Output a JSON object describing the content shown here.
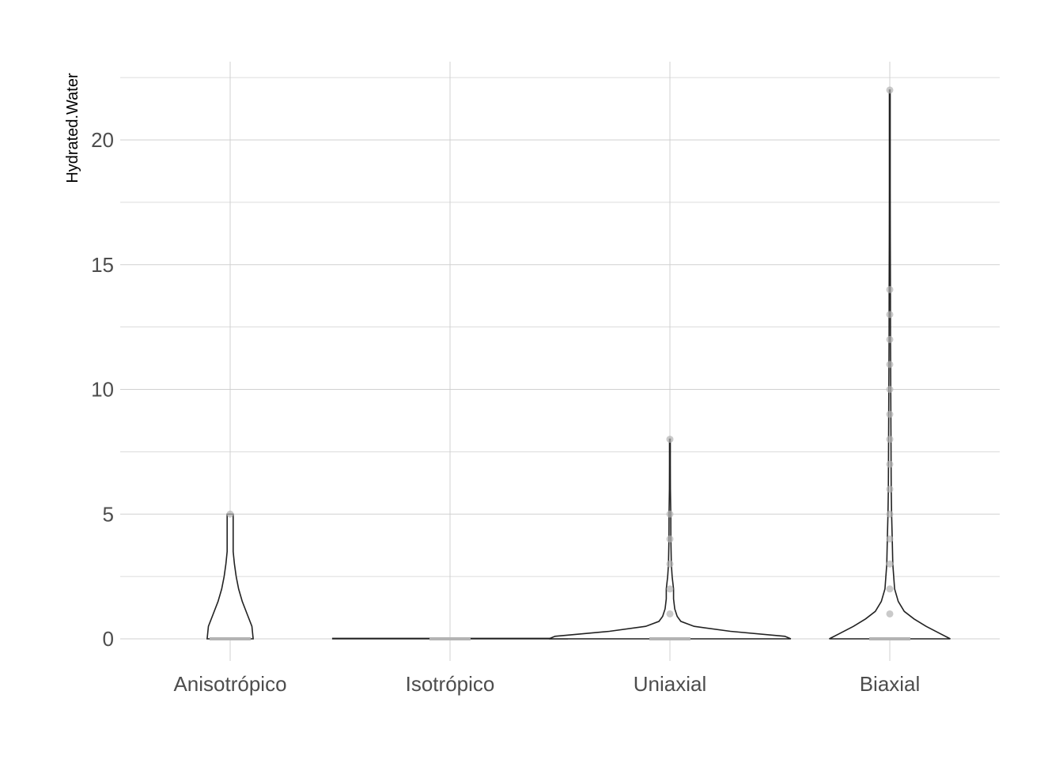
{
  "chart_data": {
    "type": "violin",
    "title": "",
    "xlabel": "",
    "ylabel": "Hydrated.Water",
    "ylim": [
      -0.9,
      23.0
    ],
    "y_ticks": [
      0,
      5,
      10,
      15,
      20
    ],
    "grid": true,
    "legend": "none",
    "colors": {
      "outline": "#222222",
      "points": "#b3b3b3",
      "grid": "#d0d0d0"
    },
    "categories": [
      "Anisotrópico",
      "Isotrópico",
      "Uniaxial",
      "Biaxial"
    ],
    "groups": [
      {
        "category": "Anisotrópico",
        "points": [
          0,
          5
        ],
        "density": [
          [
            0,
            0.19
          ],
          [
            0.5,
            0.18
          ],
          [
            1,
            0.14
          ],
          [
            1.5,
            0.1
          ],
          [
            2,
            0.07
          ],
          [
            2.5,
            0.05
          ],
          [
            3,
            0.035
          ],
          [
            3.5,
            0.025
          ],
          [
            4,
            0.025
          ],
          [
            4.5,
            0.025
          ],
          [
            5,
            0.025
          ]
        ]
      },
      {
        "category": "Isotrópico",
        "points": [
          0
        ],
        "density": [
          [
            0,
            0.97
          ],
          [
            0.02,
            0.97
          ]
        ]
      },
      {
        "category": "Uniaxial",
        "points": [
          0,
          1,
          2,
          3,
          4,
          5,
          8
        ],
        "density": [
          [
            0,
            1.0
          ],
          [
            0.1,
            0.95
          ],
          [
            0.3,
            0.5
          ],
          [
            0.5,
            0.2
          ],
          [
            0.7,
            0.09
          ],
          [
            0.9,
            0.06
          ],
          [
            1.2,
            0.04
          ],
          [
            1.6,
            0.03
          ],
          [
            2,
            0.03
          ],
          [
            2.5,
            0.018
          ],
          [
            3,
            0.012
          ],
          [
            4,
            0.008
          ],
          [
            5,
            0.007
          ],
          [
            6,
            0.004
          ],
          [
            7,
            0.003
          ],
          [
            8,
            0.003
          ]
        ]
      },
      {
        "category": "Biaxial",
        "points": [
          0,
          1,
          2,
          3,
          4,
          5,
          6,
          7,
          8,
          9,
          10,
          11,
          12,
          13,
          14,
          22
        ],
        "density": [
          [
            0,
            0.5
          ],
          [
            0.2,
            0.42
          ],
          [
            0.5,
            0.3
          ],
          [
            0.8,
            0.2
          ],
          [
            1.1,
            0.12
          ],
          [
            1.5,
            0.07
          ],
          [
            2,
            0.04
          ],
          [
            3,
            0.025
          ],
          [
            4,
            0.02
          ],
          [
            5,
            0.015
          ],
          [
            6,
            0.012
          ],
          [
            8,
            0.01
          ],
          [
            10,
            0.008
          ],
          [
            12,
            0.006
          ],
          [
            14,
            0.005
          ],
          [
            16,
            0.004
          ],
          [
            18,
            0.003
          ],
          [
            20,
            0.003
          ],
          [
            22,
            0.003
          ]
        ]
      }
    ]
  }
}
